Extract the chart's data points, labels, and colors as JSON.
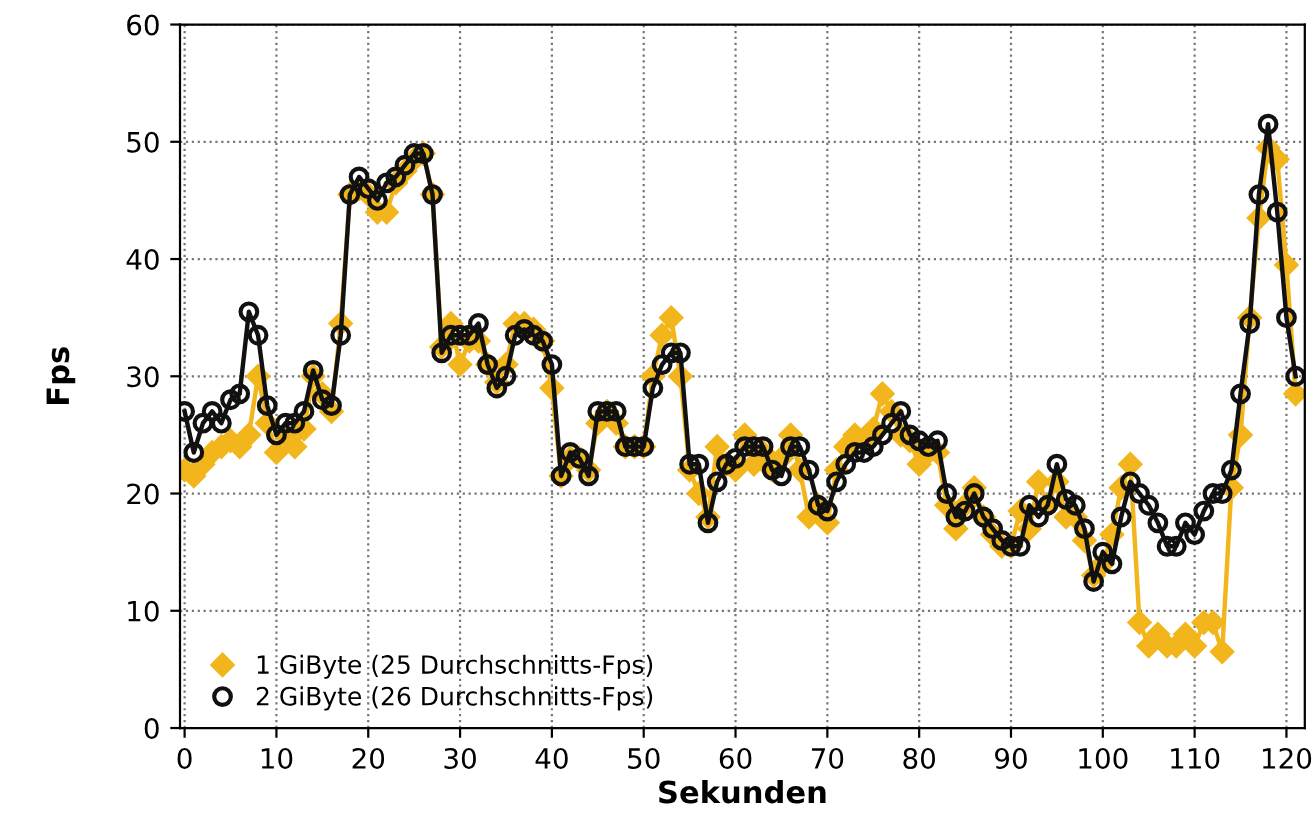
{
  "chart_data": {
    "type": "line",
    "xlabel": "Sekunden",
    "ylabel": "Fps",
    "x": [
      0,
      1,
      2,
      3,
      4,
      5,
      6,
      7,
      8,
      9,
      10,
      11,
      12,
      13,
      14,
      15,
      16,
      17,
      18,
      19,
      20,
      21,
      22,
      23,
      24,
      25,
      26,
      27,
      28,
      29,
      30,
      31,
      32,
      33,
      34,
      35,
      36,
      37,
      38,
      39,
      40,
      41,
      42,
      43,
      44,
      45,
      46,
      47,
      48,
      49,
      50,
      51,
      52,
      53,
      54,
      55,
      56,
      57,
      58,
      59,
      60,
      61,
      62,
      63,
      64,
      65,
      66,
      67,
      68,
      69,
      70,
      71,
      72,
      73,
      74,
      75,
      76,
      77,
      78,
      79,
      80,
      81,
      82,
      83,
      84,
      85,
      86,
      87,
      88,
      89,
      90,
      91,
      92,
      93,
      94,
      95,
      96,
      97,
      98,
      99,
      100,
      101,
      102,
      103,
      104,
      105,
      106,
      107,
      108,
      109,
      110,
      111,
      112,
      113,
      114,
      115,
      116,
      117,
      118,
      119,
      120,
      121
    ],
    "series": [
      {
        "name": "1 GiByte (25 Durchschnitts-Fps)",
        "color": "#f2b61c",
        "marker": "diamond",
        "values": [
          22,
          21.5,
          22.5,
          23.5,
          24,
          24.5,
          24,
          25,
          30,
          26,
          23.5,
          25,
          24,
          25.5,
          30,
          28.5,
          27,
          34.5,
          45.5,
          46,
          45.5,
          44,
          44,
          46.5,
          47.5,
          48.5,
          49,
          45.5,
          32.5,
          34.5,
          31,
          33,
          33,
          31,
          29.5,
          31,
          34.5,
          34.5,
          34,
          33,
          29,
          21.5,
          23,
          23,
          22,
          26,
          27,
          26,
          24,
          24,
          24,
          30,
          33.5,
          35,
          30,
          22,
          20,
          18,
          24,
          22.5,
          22,
          25,
          22.5,
          23.5,
          22,
          23,
          25,
          22,
          18,
          19,
          17.5,
          22,
          24,
          25,
          24.5,
          25.5,
          28.5,
          27,
          25,
          24.5,
          22.5,
          23.5,
          23.5,
          19,
          17,
          19,
          20.5,
          18,
          16.5,
          15.5,
          15.5,
          18.5,
          17,
          21,
          19,
          21,
          18,
          18,
          16,
          13,
          14,
          16.5,
          20.5,
          22.5,
          9,
          7,
          8,
          7,
          7,
          8,
          7,
          9,
          9,
          6.5,
          20.5,
          25,
          35,
          43.5,
          49.5,
          48.5,
          39.5,
          28.5
        ]
      },
      {
        "name": "2 GiByte (26 Durchschnitts-Fps)",
        "color": "#111111",
        "marker": "circle",
        "values": [
          27,
          23.5,
          26,
          27,
          26,
          28,
          28.5,
          35.5,
          33.5,
          27.5,
          25,
          26,
          26,
          27,
          30.5,
          28,
          27.5,
          33.5,
          45.5,
          47,
          46,
          45,
          46.5,
          47,
          48,
          49,
          49,
          45.5,
          32,
          33.5,
          33.5,
          33.5,
          34.5,
          31,
          29,
          30,
          33.5,
          34,
          33.5,
          33,
          31,
          21.5,
          23.5,
          23,
          21.5,
          27,
          27,
          27,
          24,
          24,
          24,
          29,
          31,
          32,
          32,
          22.5,
          22.5,
          17.5,
          21,
          22.5,
          23,
          24,
          24,
          24,
          22,
          21.5,
          24,
          24,
          22,
          19,
          18.5,
          21,
          22.5,
          23.5,
          23.5,
          24,
          25,
          26,
          27,
          25,
          24.5,
          24,
          24.5,
          20,
          18,
          18.5,
          20,
          18,
          17,
          16,
          15.5,
          15.5,
          19,
          18,
          19,
          22.5,
          19.5,
          19,
          17,
          12.5,
          15,
          14,
          18,
          21,
          20,
          19,
          17.5,
          15.5,
          15.5,
          17.5,
          16.5,
          18.5,
          20,
          20,
          22,
          28.5,
          34.5,
          45.5,
          51.5,
          44,
          35,
          30
        ]
      }
    ],
    "xlim": [
      -0.5,
      122
    ],
    "ylim": [
      0,
      60
    ],
    "xticks": [
      0,
      10,
      20,
      30,
      40,
      50,
      60,
      70,
      80,
      90,
      100,
      110,
      120
    ],
    "yticks": [
      0,
      10,
      20,
      30,
      40,
      50,
      60
    ],
    "grid": true,
    "legend": "bottom left",
    "line_style": "solid"
  }
}
